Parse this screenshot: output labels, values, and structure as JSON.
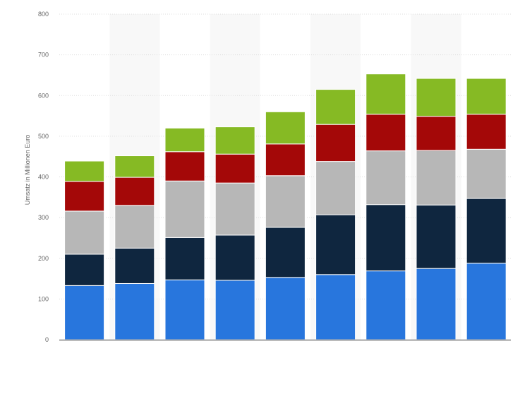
{
  "chart_data": {
    "type": "bar",
    "stacked": true,
    "ylabel": "Umsatz in Millionen Euro",
    "ylim": [
      0,
      800
    ],
    "yticks": [
      "0",
      "100",
      "200",
      "300",
      "400",
      "500",
      "600",
      "700",
      "800"
    ],
    "grid": true,
    "categories": [
      "",
      "",
      "",
      "",
      "",
      "",
      "",
      "",
      ""
    ],
    "series": [
      {
        "color": "#2876dd",
        "values": [
          133,
          138,
          147,
          146,
          153,
          160,
          169,
          175,
          188
        ]
      },
      {
        "color": "#0f263f",
        "values": [
          77,
          87,
          104,
          111,
          123,
          147,
          163,
          156,
          159
        ]
      },
      {
        "color": "#b7b7b7",
        "values": [
          106,
          105,
          139,
          128,
          127,
          131,
          132,
          134,
          121
        ]
      },
      {
        "color": "#a40808",
        "values": [
          73,
          69,
          72,
          71,
          78,
          91,
          90,
          84,
          86
        ]
      },
      {
        "color": "#86ba24",
        "values": [
          50,
          53,
          58,
          67,
          79,
          86,
          99,
          93,
          88
        ]
      }
    ]
  }
}
